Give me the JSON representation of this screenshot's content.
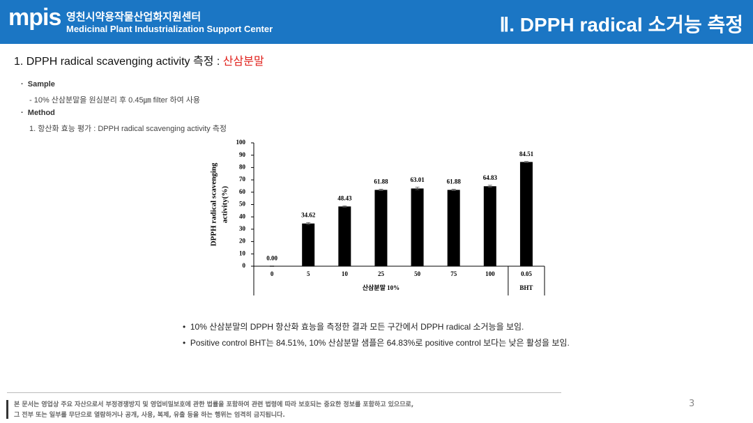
{
  "header": {
    "logo": "mpis",
    "org_ko": "영천시약용작물산업화지원센터",
    "org_en": "Medicinal Plant Industrialization Support Center",
    "title": "Ⅱ. DPPH radical 소거능 측정"
  },
  "section": {
    "title": "1. DPPH radical scavenging activity 측정 : ",
    "highlight": "산삼분말"
  },
  "bullets": [
    {
      "label": "Sample",
      "text": "- 10% 산삼분말을 원심분리 후 0.45㎛ filter 하여 사용"
    },
    {
      "label": "Method",
      "text": "1. 항산화 효능 평가 : DPPH radical scavenging activity 측정"
    }
  ],
  "chart_data": {
    "type": "bar",
    "y_label": [
      "DPPH radical scavenging",
      "activity(%)"
    ],
    "groups": [
      {
        "label": "산삼분말 10%",
        "categories": [
          "0",
          "5",
          "10",
          "25",
          "50",
          "75",
          "100"
        ],
        "values": [
          0,
          34.62,
          48.43,
          61.88,
          63.01,
          61.88,
          64.83
        ],
        "value_labels": [
          "0.00",
          "34.62",
          "48.43",
          "61.88",
          "63.01",
          "61.88",
          "64.83"
        ],
        "errors": [
          0.3,
          0.8,
          0.5,
          0.5,
          1,
          0.5,
          0.8
        ]
      },
      {
        "label": "BHT",
        "categories": [
          "0.05"
        ],
        "values": [
          84.51
        ],
        "value_labels": [
          "84.51"
        ],
        "errors": [
          0.4
        ]
      }
    ],
    "color": "#000000",
    "ylim": [
      0,
      100
    ],
    "yticks": [
      0,
      10,
      20,
      30,
      40,
      50,
      60,
      70,
      80,
      90,
      100
    ],
    "grid": false
  },
  "conclusions": [
    "10% 산삼분말의 DPPH 항산화 효능을 측정한 결과 모든 구간에서 DPPH radical 소거능을 보임.",
    "Positive control BHT는 84.51%, 10% 산삼분말 샘플은 64.83%로 positive control 보다는 낮은 활성을 보임."
  ],
  "footer": {
    "notice": [
      "본 문서는 영업상 주요 자산으로서 부정경쟁방지 및 영업비밀보호에 관한 법률을 포함하여 관련 법령에 따라 보호되는 중요한 정보를 포함하고 있으므로,",
      "그 전부 또는 일부를 무단으로 열람하거나 공개, 사용, 복제, 유출 등을 하는 행위는 엄격히 금지됩니다."
    ],
    "page": "3"
  }
}
